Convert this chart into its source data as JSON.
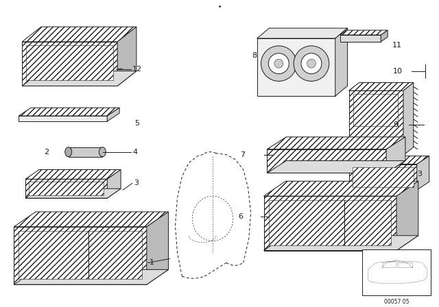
{
  "background_color": "#ffffff",
  "line_color": "#1a1a1a",
  "fig_width": 6.4,
  "fig_height": 4.48,
  "dpi": 100,
  "watermark": "00057 05"
}
